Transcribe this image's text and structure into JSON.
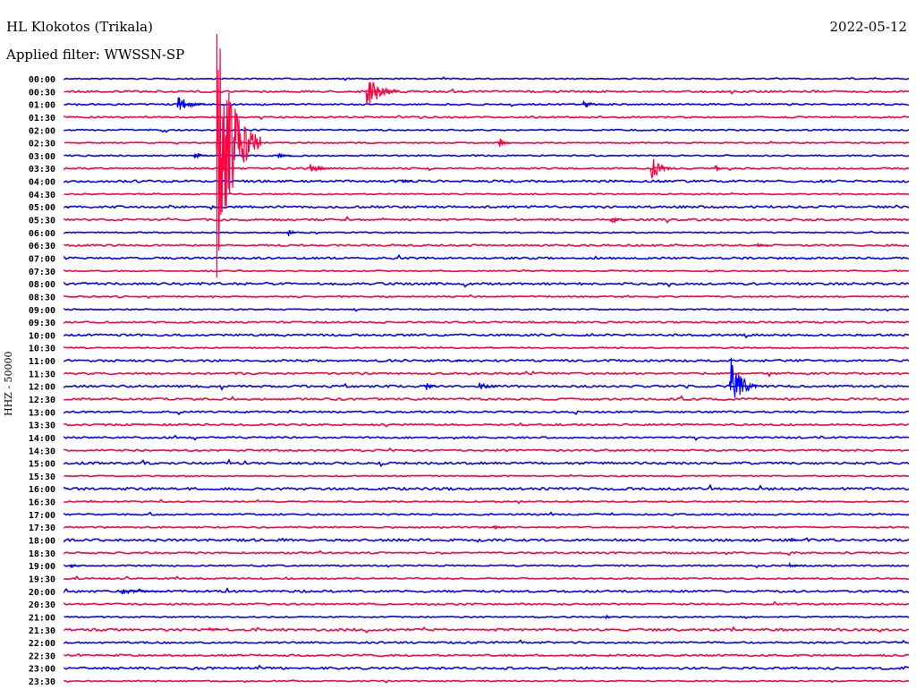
{
  "header": {
    "station": "HL Klokotos (Trikala)",
    "filter": "Applied filter: WWSSN-SP",
    "date": "2022-05-12"
  },
  "chart_data": {
    "type": "line",
    "title": "HL Klokotos (Trikala)",
    "subtitle": "Applied filter: WWSSN-SP",
    "date": "2022-05-12",
    "ylabel": "HHZ - 50000",
    "row_minutes": 30,
    "colors": [
      "#0000ff",
      "#ff0040"
    ],
    "rows": [
      "00:00",
      "00:30",
      "01:00",
      "01:30",
      "02:00",
      "02:30",
      "03:00",
      "03:30",
      "04:00",
      "04:30",
      "05:00",
      "05:30",
      "06:00",
      "06:30",
      "07:00",
      "07:30",
      "08:00",
      "08:30",
      "09:00",
      "09:30",
      "10:00",
      "10:30",
      "11:00",
      "11:30",
      "12:00",
      "12:30",
      "13:00",
      "13:30",
      "14:00",
      "14:30",
      "15:00",
      "15:30",
      "16:00",
      "16:30",
      "17:00",
      "17:30",
      "18:00",
      "18:30",
      "19:00",
      "19:30",
      "20:00",
      "20:30",
      "21:00",
      "21:30",
      "22:00",
      "22:30",
      "23:00",
      "23:30"
    ],
    "events": [
      {
        "row": 1,
        "minute": 10.7,
        "amplitude": 25,
        "duration": 1.2
      },
      {
        "row": 2,
        "minute": 4.0,
        "amplitude": 12,
        "duration": 1.0
      },
      {
        "row": 2,
        "minute": 18.4,
        "amplitude": 6,
        "duration": 0.8
      },
      {
        "row": 5,
        "minute": 5.4,
        "amplitude": 150,
        "duration": 1.6
      },
      {
        "row": 5,
        "minute": 15.4,
        "amplitude": 8,
        "duration": 0.5
      },
      {
        "row": 6,
        "minute": 4.6,
        "amplitude": 8,
        "duration": 0.5
      },
      {
        "row": 6,
        "minute": 7.5,
        "amplitude": 5,
        "duration": 0.6
      },
      {
        "row": 7,
        "minute": 8.7,
        "amplitude": 8,
        "duration": 0.8
      },
      {
        "row": 7,
        "minute": 20.8,
        "amplitude": 18,
        "duration": 0.8
      },
      {
        "row": 7,
        "minute": 23.1,
        "amplitude": 8,
        "duration": 0.3
      },
      {
        "row": 8,
        "minute": 12.0,
        "amplitude": 4,
        "duration": 0.4
      },
      {
        "row": 11,
        "minute": 19.4,
        "amplitude": 6,
        "duration": 0.6
      },
      {
        "row": 12,
        "minute": 7.9,
        "amplitude": 7,
        "duration": 0.4
      },
      {
        "row": 13,
        "minute": 24.6,
        "amplitude": 4,
        "duration": 0.5
      },
      {
        "row": 22,
        "minute": 13.9,
        "amplitude": 3,
        "duration": 0.3
      },
      {
        "row": 24,
        "minute": 12.8,
        "amplitude": 7,
        "duration": 0.4
      },
      {
        "row": 24,
        "minute": 14.7,
        "amplitude": 7,
        "duration": 0.7
      },
      {
        "row": 24,
        "minute": 23.6,
        "amplitude": 45,
        "duration": 1.0
      },
      {
        "row": 35,
        "minute": 15.2,
        "amplitude": 4,
        "duration": 0.5
      },
      {
        "row": 36,
        "minute": 25.8,
        "amplitude": 3,
        "duration": 0.5
      },
      {
        "row": 38,
        "minute": 0.2,
        "amplitude": 4,
        "duration": 0.4
      },
      {
        "row": 38,
        "minute": 25.7,
        "amplitude": 4,
        "duration": 0.6
      },
      {
        "row": 40,
        "minute": 2.0,
        "amplitude": 4,
        "duration": 1.5
      },
      {
        "row": 42,
        "minute": 19.2,
        "amplitude": 3,
        "duration": 0.4
      },
      {
        "row": 43,
        "minute": 5.1,
        "amplitude": 4,
        "duration": 0.4
      }
    ]
  }
}
